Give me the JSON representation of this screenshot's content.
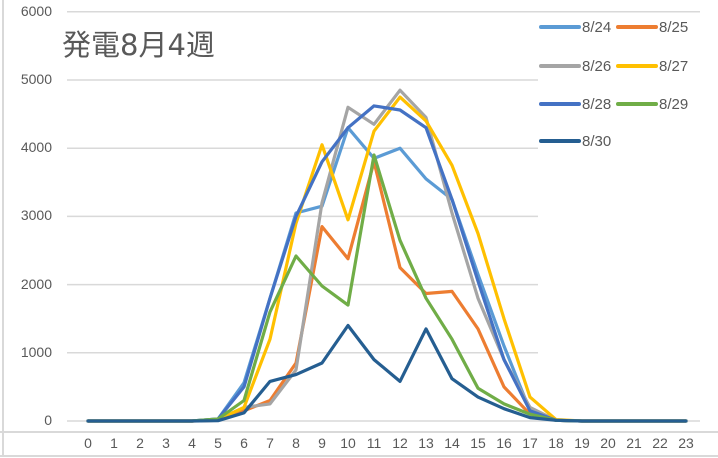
{
  "chart_data": {
    "type": "line",
    "title": "発電8月4週",
    "xlabel": "",
    "ylabel": "",
    "ylim": [
      0,
      6000
    ],
    "yticks": [
      0,
      1000,
      2000,
      3000,
      4000,
      5000,
      6000
    ],
    "grid": true,
    "legend_position": "top-right",
    "x": [
      0,
      1,
      2,
      3,
      4,
      5,
      6,
      7,
      8,
      9,
      10,
      11,
      12,
      13,
      14,
      15,
      16,
      17,
      18,
      19,
      20,
      21,
      22,
      23
    ],
    "series": [
      {
        "name": "8/24",
        "color": "#5b9bd5",
        "values": [
          0,
          0,
          0,
          0,
          0,
          30,
          560,
          1800,
          3050,
          3150,
          4300,
          3850,
          4000,
          3550,
          3250,
          2150,
          1100,
          150,
          10,
          0,
          0,
          0,
          0,
          0
        ]
      },
      {
        "name": "8/25",
        "color": "#ed7d31",
        "values": [
          0,
          0,
          0,
          0,
          0,
          10,
          150,
          300,
          850,
          2850,
          2380,
          3800,
          2250,
          1870,
          1900,
          1350,
          500,
          100,
          10,
          0,
          0,
          0,
          0,
          0
        ]
      },
      {
        "name": "8/26",
        "color": "#a5a5a5",
        "values": [
          0,
          0,
          0,
          0,
          0,
          20,
          200,
          250,
          750,
          3200,
          4600,
          4350,
          4850,
          4450,
          3050,
          1800,
          900,
          200,
          10,
          0,
          0,
          0,
          0,
          0
        ]
      },
      {
        "name": "8/27",
        "color": "#ffc000",
        "values": [
          0,
          0,
          0,
          0,
          0,
          20,
          200,
          1200,
          2900,
          4050,
          2950,
          4250,
          4750,
          4400,
          3750,
          2750,
          1500,
          350,
          20,
          0,
          0,
          0,
          0,
          0
        ]
      },
      {
        "name": "8/28",
        "color": "#4472c4",
        "values": [
          0,
          0,
          0,
          0,
          0,
          30,
          500,
          1800,
          3000,
          3800,
          4300,
          4620,
          4560,
          4300,
          3250,
          2050,
          900,
          150,
          10,
          0,
          0,
          0,
          0,
          0
        ]
      },
      {
        "name": "8/29",
        "color": "#70ad47",
        "values": [
          0,
          0,
          0,
          0,
          0,
          30,
          300,
          1600,
          2420,
          1980,
          1700,
          3900,
          2650,
          1800,
          1200,
          480,
          250,
          100,
          10,
          0,
          0,
          0,
          0,
          0
        ]
      },
      {
        "name": "8/30",
        "color": "#255e91",
        "values": [
          0,
          0,
          0,
          0,
          0,
          5,
          120,
          580,
          680,
          850,
          1400,
          900,
          580,
          1350,
          620,
          350,
          180,
          50,
          10,
          0,
          0,
          0,
          0,
          0
        ]
      }
    ]
  },
  "legend": {
    "items": [
      {
        "label": "8/24",
        "color": "#5b9bd5"
      },
      {
        "label": "8/25",
        "color": "#ed7d31"
      },
      {
        "label": "8/26",
        "color": "#a5a5a5"
      },
      {
        "label": "8/27",
        "color": "#ffc000"
      },
      {
        "label": "8/28",
        "color": "#4472c4"
      },
      {
        "label": "8/29",
        "color": "#70ad47"
      },
      {
        "label": "8/30",
        "color": "#255e91"
      }
    ]
  }
}
